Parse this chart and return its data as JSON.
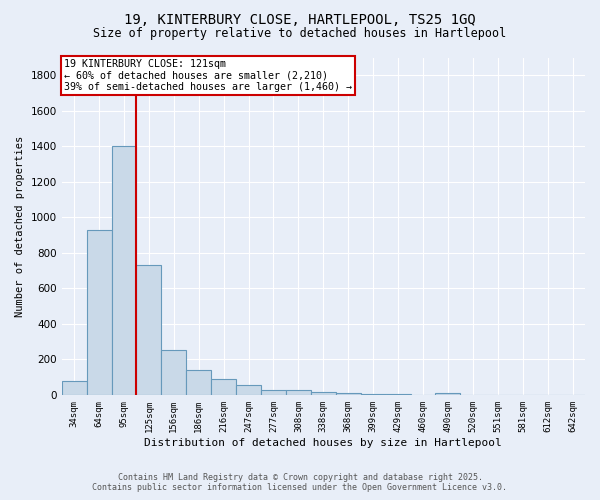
{
  "title_line1": "19, KINTERBURY CLOSE, HARTLEPOOL, TS25 1GQ",
  "title_line2": "Size of property relative to detached houses in Hartlepool",
  "xlabel": "Distribution of detached houses by size in Hartlepool",
  "ylabel": "Number of detached properties",
  "footer_line1": "Contains HM Land Registry data © Crown copyright and database right 2025.",
  "footer_line2": "Contains public sector information licensed under the Open Government Licence v3.0.",
  "annotation_line1": "19 KINTERBURY CLOSE: 121sqm",
  "annotation_line2": "← 60% of detached houses are smaller (2,210)",
  "annotation_line3": "39% of semi-detached houses are larger (1,460) →",
  "bar_labels": [
    "34sqm",
    "64sqm",
    "95sqm",
    "125sqm",
    "156sqm",
    "186sqm",
    "216sqm",
    "247sqm",
    "277sqm",
    "308sqm",
    "338sqm",
    "368sqm",
    "399sqm",
    "429sqm",
    "460sqm",
    "490sqm",
    "520sqm",
    "551sqm",
    "581sqm",
    "612sqm",
    "642sqm"
  ],
  "bar_values": [
    80,
    930,
    1400,
    730,
    250,
    140,
    90,
    55,
    25,
    30,
    15,
    10,
    5,
    5,
    0,
    10,
    0,
    0,
    0,
    0,
    0
  ],
  "bar_color": "#c9d9e8",
  "bar_edge_color": "#6699bb",
  "red_line_color": "#cc0000",
  "ylim": [
    0,
    1900
  ],
  "yticks": [
    0,
    200,
    400,
    600,
    800,
    1000,
    1200,
    1400,
    1600,
    1800
  ],
  "background_color": "#e8eef8",
  "grid_color": "#ffffff",
  "annotation_box_color": "#ffffff",
  "annotation_box_edge": "#cc0000",
  "title_fontsize": 10,
  "subtitle_fontsize": 8.5
}
